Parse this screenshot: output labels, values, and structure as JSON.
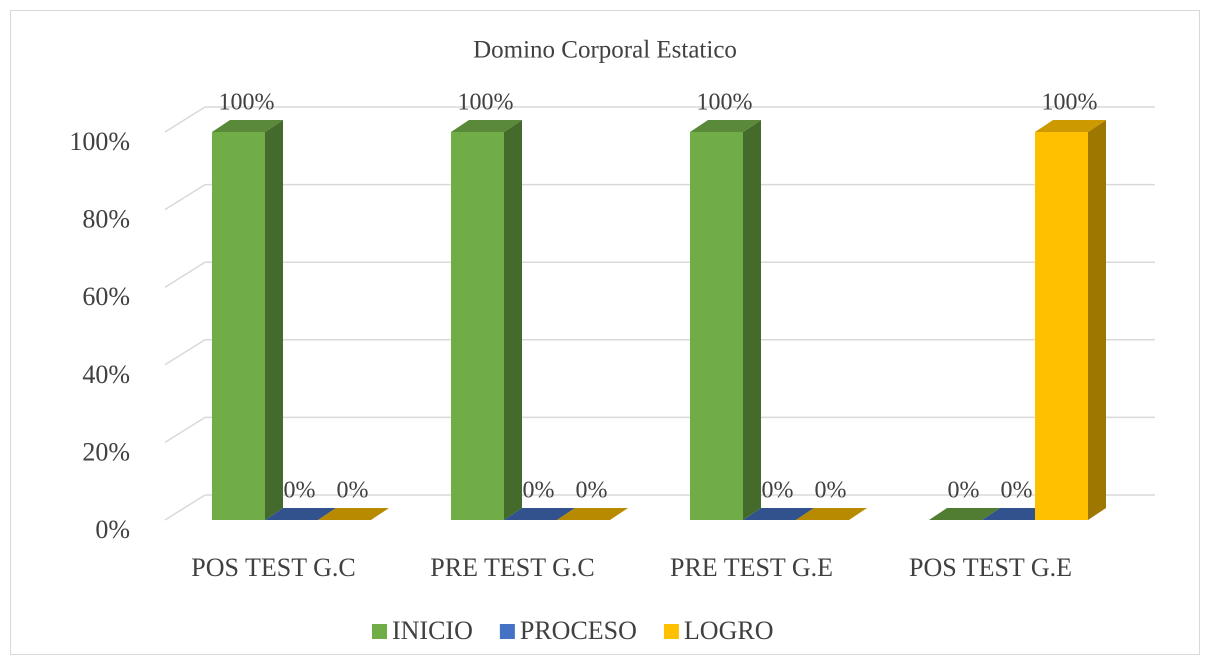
{
  "chart_data": {
    "type": "bar3d",
    "title": "Domino Corporal Estatico",
    "categories": [
      "POS TEST G.C",
      "PRE TEST G.C",
      "PRE TEST G.E",
      "POS TEST G.E"
    ],
    "series": [
      {
        "name": "INICIO",
        "color": "#70ad47",
        "values": [
          100,
          100,
          100,
          0
        ],
        "value_labels": [
          "100%",
          "100%",
          "100%",
          "0%"
        ]
      },
      {
        "name": "PROCESO",
        "color": "#4472c4",
        "values": [
          0,
          0,
          0,
          0
        ],
        "value_labels": [
          "0%",
          "0%",
          "0%",
          "0%"
        ]
      },
      {
        "name": "LOGRO",
        "color": "#ffc000",
        "values": [
          0,
          0,
          0,
          100
        ],
        "value_labels": [
          "0%",
          "0%",
          "0%",
          "100%"
        ]
      }
    ],
    "ylim": [
      0,
      100
    ],
    "yticks": [
      {
        "value": 0,
        "label": "0%"
      },
      {
        "value": 20,
        "label": "20%"
      },
      {
        "value": 40,
        "label": "40%"
      },
      {
        "value": 60,
        "label": "60%"
      },
      {
        "value": 80,
        "label": "80%"
      },
      {
        "value": 100,
        "label": "100%"
      }
    ],
    "grid": true,
    "legend": "bottom"
  }
}
